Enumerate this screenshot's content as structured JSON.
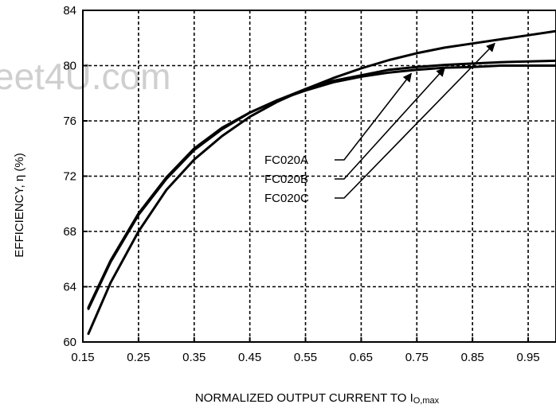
{
  "watermark": "eet4U.com",
  "chart_data": {
    "type": "line",
    "title": "",
    "xlabel": "NORMALIZED OUTPUT CURRENT TO I",
    "xlabel_subscript": "O,max",
    "ylabel": "EFFICIENCY, η (%)",
    "xlim": [
      0.15,
      1.0
    ],
    "ylim": [
      60,
      84
    ],
    "x_ticks": [
      "0.15",
      "0.25",
      "0.35",
      "0.45",
      "0.55",
      "0.65",
      "0.75",
      "0.85",
      "0.95"
    ],
    "y_ticks": [
      "60",
      "64",
      "68",
      "72",
      "76",
      "80",
      "84"
    ],
    "grid": true,
    "grid_style": "dashed",
    "legend": "callout-labels-center",
    "series": [
      {
        "name": "FC020A",
        "color": "#000000",
        "x": [
          0.16,
          0.2,
          0.25,
          0.3,
          0.35,
          0.4,
          0.45,
          0.5,
          0.55,
          0.6,
          0.65,
          0.7,
          0.75,
          0.8,
          0.85,
          0.9,
          0.95,
          1.0
        ],
        "y": [
          62.4,
          65.8,
          69.2,
          71.8,
          73.9,
          75.4,
          76.6,
          77.5,
          78.2,
          78.8,
          79.2,
          79.5,
          79.7,
          79.85,
          79.9,
          80.0,
          80.0,
          80.0
        ]
      },
      {
        "name": "FC020B",
        "color": "#000000",
        "x": [
          0.16,
          0.2,
          0.25,
          0.3,
          0.35,
          0.4,
          0.45,
          0.5,
          0.55,
          0.6,
          0.65,
          0.7,
          0.75,
          0.8,
          0.85,
          0.9,
          0.95,
          1.0
        ],
        "y": [
          60.6,
          64.3,
          68.0,
          71.0,
          73.2,
          74.9,
          76.3,
          77.4,
          78.3,
          78.9,
          79.3,
          79.7,
          79.9,
          80.05,
          80.15,
          80.25,
          80.3,
          80.35
        ]
      },
      {
        "name": "FC020C",
        "color": "#000000",
        "x": [
          0.16,
          0.2,
          0.25,
          0.3,
          0.35,
          0.4,
          0.45,
          0.5,
          0.55,
          0.6,
          0.65,
          0.7,
          0.75,
          0.8,
          0.85,
          0.9,
          0.95,
          1.0
        ],
        "y": [
          62.5,
          65.9,
          69.3,
          71.9,
          74.0,
          75.5,
          76.6,
          77.5,
          78.3,
          79.1,
          79.8,
          80.4,
          80.9,
          81.3,
          81.6,
          81.9,
          82.2,
          82.5
        ]
      }
    ]
  }
}
